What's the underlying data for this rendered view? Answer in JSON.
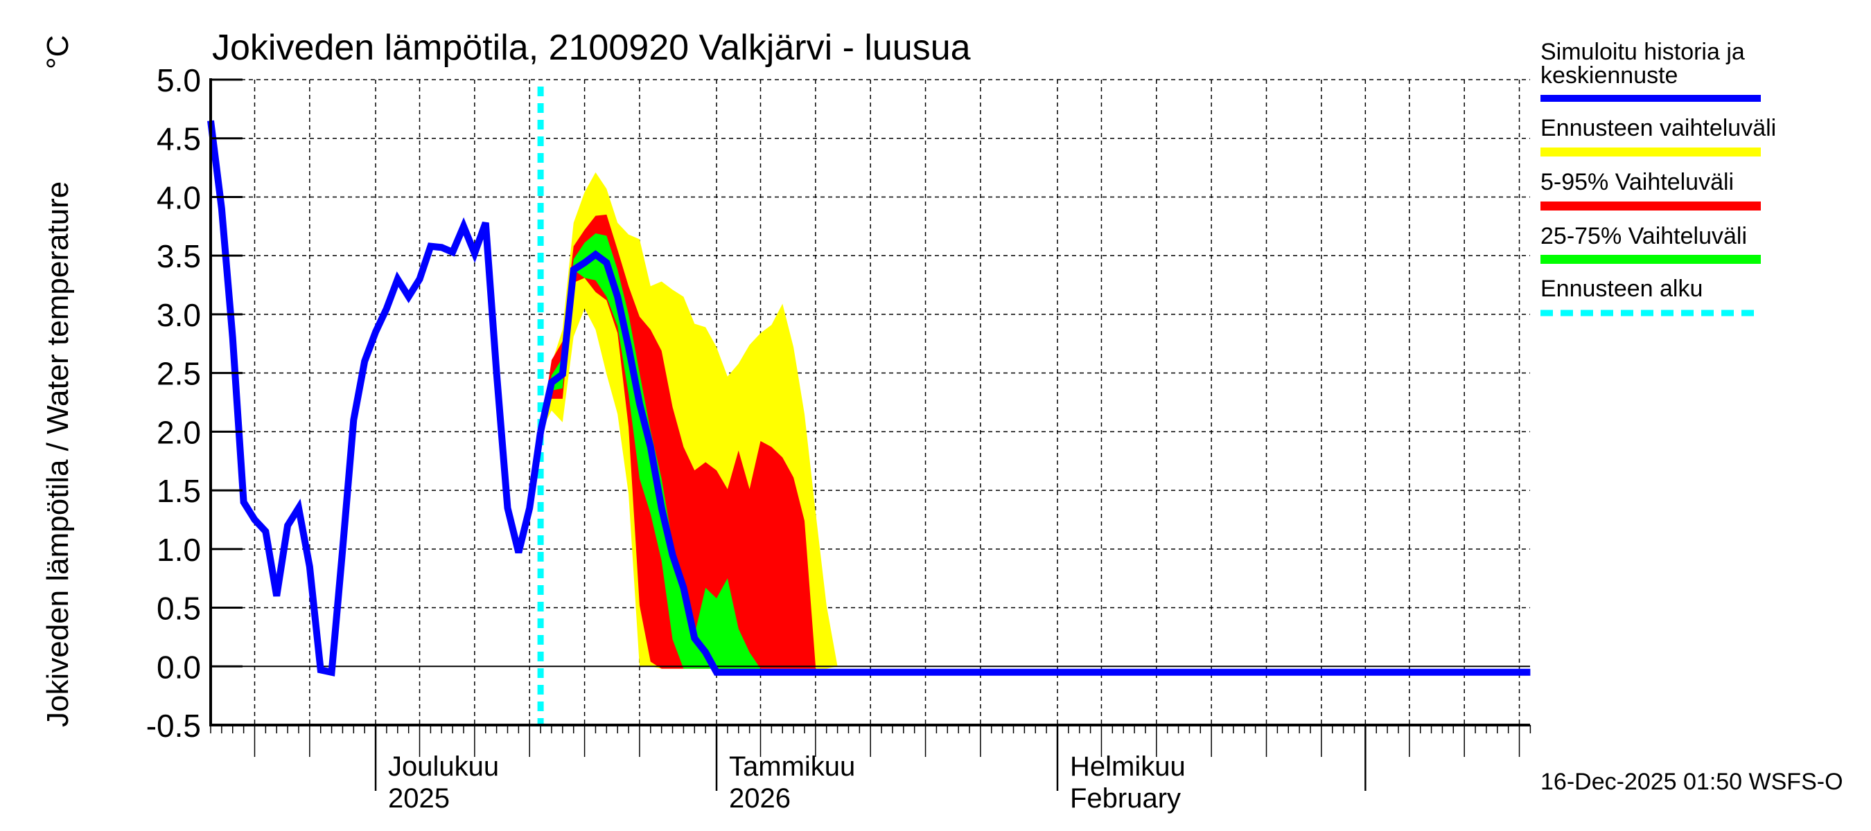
{
  "title": "Jokiveden lämpötila, 2100920 Valkjärvi - luusua",
  "y_axis_label": "Jokiveden lämpötila / Water temperature",
  "y_axis_unit": "°C",
  "timestamp": "16-Dec-2025 01:50 WSFS-O",
  "month_labels": [
    {
      "line1": "Joulukuu",
      "line2": "2025",
      "day": 15
    },
    {
      "line1": "Tammikuu",
      "line2": "2026",
      "day": 46
    },
    {
      "line1": "Helmikuu",
      "line2": "February",
      "day": 77
    }
  ],
  "legend": [
    {
      "label": "Simuloitu historia ja keskiennuste",
      "line1": "Simuloitu historia ja",
      "line2": "keskiennuste",
      "color": "#0000ff",
      "style": "solid"
    },
    {
      "label": "Ennusteen vaihteluväli",
      "color": "#ffff00",
      "style": "solid"
    },
    {
      "label": "5-95% Vaihteluväli",
      "color": "#ff0000",
      "style": "solid"
    },
    {
      "label": "25-75% Vaihteluväli",
      "color": "#00ff00",
      "style": "solid"
    },
    {
      "label": "Ennusteen alku",
      "color": "#00ffff",
      "style": "dashed"
    }
  ],
  "chart_data": {
    "type": "area",
    "title": "Jokiveden lämpötila, 2100920 Valkjärvi - luusua",
    "xlabel": "",
    "ylabel": "Jokiveden lämpötila / Water temperature °C",
    "ylim": [
      -0.5,
      5.0
    ],
    "yticks": [
      "5.0",
      "4.5",
      "4.0",
      "3.5",
      "3.0",
      "2.5",
      "2.0",
      "1.5",
      "1.0",
      "0.5",
      "0.0",
      "-0.5"
    ],
    "x_start": "2025-11-16",
    "x_end": "2026-03-16",
    "x_unit": "day index from 2025-11-16",
    "forecast_start_day": 30,
    "forecast_start_date": "2025-12-16",
    "grid": true,
    "legend_position": "right",
    "history": {
      "name": "Simuloitu historia",
      "start_day": 0,
      "values": [
        4.65,
        3.9,
        2.8,
        1.4,
        1.25,
        1.15,
        0.6,
        1.2,
        1.35,
        0.85,
        -0.03,
        -0.05,
        1.0,
        2.1,
        2.6,
        2.85,
        3.05,
        3.3,
        3.15,
        3.3,
        3.58,
        3.57,
        3.53,
        3.75,
        3.52,
        3.78,
        2.5,
        1.35,
        0.97,
        1.35,
        2.0
      ]
    },
    "forecast": {
      "start_day": 30,
      "median": [
        2.0,
        2.42,
        2.49,
        3.38,
        3.44,
        3.51,
        3.44,
        3.15,
        2.72,
        2.24,
        1.87,
        1.35,
        0.95,
        0.67,
        0.24,
        0.12,
        -0.05
      ],
      "median_tail_value": -0.05,
      "median_end_day": 120,
      "yellow_upper": [
        2.0,
        2.58,
        2.87,
        3.78,
        4.04,
        4.21,
        4.07,
        3.78,
        3.68,
        3.64,
        3.24,
        3.28,
        3.21,
        3.15,
        2.92,
        2.89,
        2.72,
        2.47,
        2.58,
        2.74,
        2.84,
        2.91,
        3.09,
        2.72,
        2.15,
        1.32,
        0.52,
        0.0
      ],
      "yellow_lower": [
        2.0,
        2.18,
        2.08,
        2.81,
        3.05,
        2.87,
        2.49,
        2.15,
        1.47,
        0.0,
        0.0,
        -0.02,
        -0.02,
        -0.02,
        -0.02,
        -0.02,
        -0.02,
        -0.02,
        -0.02,
        -0.02,
        -0.02,
        -0.02,
        -0.02,
        -0.02,
        -0.02,
        -0.02,
        -0.02,
        0.0
      ],
      "red_upper": [
        2.0,
        2.61,
        2.77,
        3.58,
        3.72,
        3.84,
        3.85,
        3.55,
        3.24,
        2.98,
        2.87,
        2.69,
        2.21,
        1.87,
        1.67,
        1.74,
        1.67,
        1.51,
        1.84,
        1.51,
        1.92,
        1.87,
        1.78,
        1.61,
        1.24,
        0.01
      ],
      "red_lower": [
        2.0,
        2.28,
        2.28,
        3.27,
        3.31,
        3.19,
        3.12,
        2.84,
        2.04,
        0.52,
        0.04,
        -0.02,
        -0.02,
        -0.02,
        -0.02,
        -0.02,
        -0.02,
        -0.02,
        -0.02,
        -0.02,
        -0.02,
        -0.02,
        -0.02,
        -0.02,
        -0.02,
        -0.02
      ],
      "green_upper": [
        2.0,
        2.48,
        2.63,
        3.47,
        3.61,
        3.69,
        3.67,
        3.38,
        3.0,
        2.5,
        2.01,
        1.6,
        1.05,
        0.63,
        0.27,
        0.67,
        0.58,
        0.75,
        0.32,
        0.12,
        -0.02
      ],
      "green_lower": [
        2.0,
        2.35,
        2.37,
        3.38,
        3.31,
        3.29,
        3.15,
        2.9,
        2.32,
        1.6,
        1.3,
        0.9,
        0.23,
        -0.02,
        -0.02,
        -0.02,
        -0.02,
        -0.02,
        -0.02,
        -0.02,
        -0.02
      ]
    }
  }
}
